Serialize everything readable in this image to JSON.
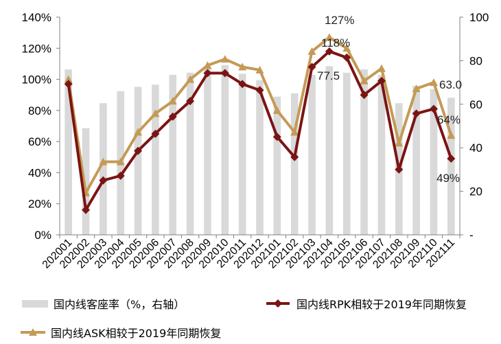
{
  "chart_data": {
    "type": "bar+line",
    "title": "",
    "categories": [
      "202001",
      "202002",
      "202003",
      "202004",
      "202005",
      "202006",
      "202007",
      "202008",
      "202009",
      "202010",
      "202011",
      "202012",
      "202101",
      "202102",
      "202103",
      "202104",
      "202105",
      "202106",
      "202107",
      "202108",
      "202109",
      "202110",
      "202111"
    ],
    "left_axis": {
      "ticks": [
        "0%",
        "20%",
        "40%",
        "60%",
        "80%",
        "100%",
        "120%",
        "140%"
      ],
      "min": 0,
      "max": 140
    },
    "right_axis": {
      "ticks": [
        "-",
        "20",
        "40",
        "60",
        "80",
        "100"
      ],
      "min": 0,
      "max": 100
    },
    "series": [
      {
        "name": "国内线客座率（%，右轴）",
        "kind": "bar",
        "axis": "right",
        "color": "#d9d9d9",
        "values": [
          76,
          49,
          60.5,
          66,
          68,
          69,
          73.5,
          74.5,
          76.5,
          78,
          74,
          71,
          63.5,
          65,
          73.5,
          77.5,
          74.5,
          76,
          73.5,
          60.5,
          68.5,
          67,
          63
        ]
      },
      {
        "name": "国内线RPK相较于2019年同期恢复",
        "kind": "line",
        "marker": "diamond",
        "axis": "left",
        "color": "#7b1414",
        "values": [
          97,
          16,
          35,
          38,
          54,
          65,
          76,
          86,
          104,
          104,
          97,
          93,
          63,
          50,
          108,
          118,
          114,
          90,
          99,
          42,
          78,
          81,
          49
        ]
      },
      {
        "name": "国内线ASK相较于2019年同期恢复",
        "kind": "line",
        "marker": "triangle",
        "axis": "left",
        "color": "#c49a55",
        "values": [
          100,
          27,
          47,
          47,
          66,
          78,
          86,
          100,
          109,
          113,
          108,
          106,
          80,
          66,
          118,
          127,
          120,
          99,
          107,
          59,
          94,
          98,
          64
        ]
      }
    ],
    "annotations": [
      "127%",
      "118%",
      "77.5",
      "63.0",
      "64%",
      "49%"
    ],
    "legend_position": "bottom"
  }
}
